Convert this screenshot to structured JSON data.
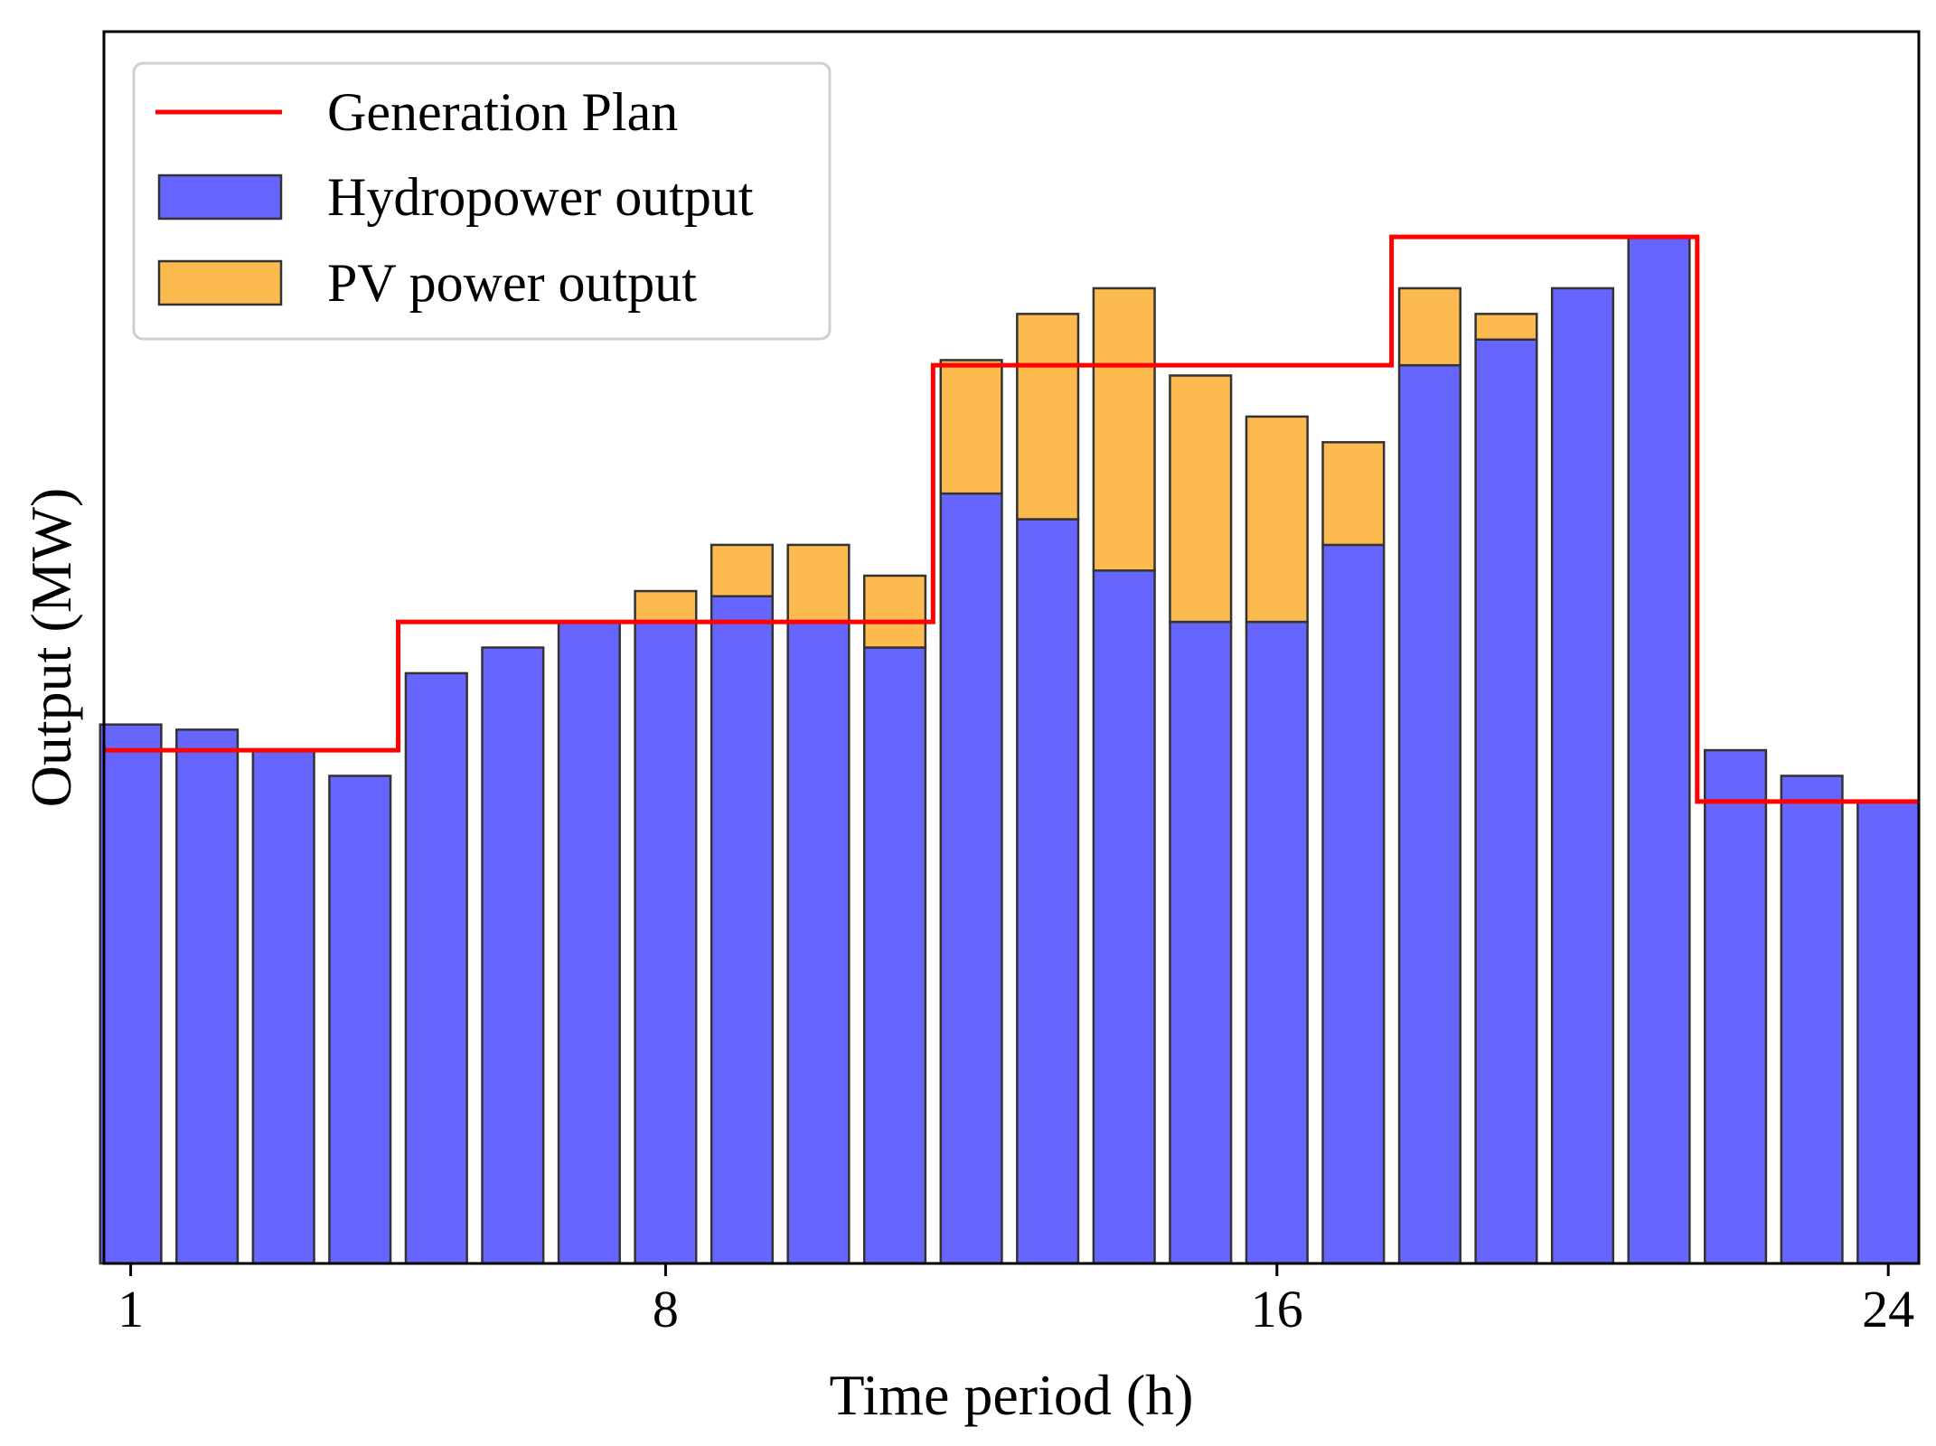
{
  "chart_data": {
    "type": "bar",
    "title": "",
    "xlabel": "Time period (h)",
    "ylabel": "Output (MW)",
    "x": [
      1,
      2,
      3,
      4,
      5,
      6,
      7,
      8,
      9,
      10,
      11,
      12,
      13,
      14,
      15,
      16,
      17,
      18,
      19,
      20,
      21,
      22,
      23,
      24
    ],
    "xticks": [
      "1",
      "8",
      "16",
      "24"
    ],
    "xlim": [
      0.65,
      24.4
    ],
    "ylim": [
      0,
      48
    ],
    "yticks_visible": false,
    "grid": false,
    "legend_position": "top-left",
    "series": [
      {
        "name": "Hydropower output",
        "kind": "bar",
        "color": "#6666ff",
        "values": [
          21,
          20.8,
          20,
          19,
          23,
          24,
          25,
          25,
          26,
          25,
          24,
          30,
          29,
          27,
          25,
          25,
          28,
          35,
          36,
          38,
          40,
          20,
          19,
          18
        ]
      },
      {
        "name": "PV power output",
        "kind": "bar-stacked",
        "color": "#fdbb4f",
        "values": [
          0,
          0,
          0,
          0,
          0,
          0,
          0,
          1.2,
          2,
          3,
          2.8,
          5.2,
          8,
          11,
          9.6,
          8,
          4,
          3,
          1,
          0,
          0,
          0,
          0,
          0
        ]
      },
      {
        "name": "Generation Plan",
        "kind": "step-line",
        "color": "#ff0000",
        "values": [
          20,
          20,
          20,
          20,
          25,
          25,
          25,
          25,
          25,
          25,
          25,
          35,
          35,
          35,
          35,
          35,
          35,
          40,
          40,
          40,
          40,
          18,
          18,
          18
        ]
      }
    ],
    "legend": [
      {
        "label": "Generation Plan",
        "symbol": "line",
        "color": "#ff0000"
      },
      {
        "label": "Hydropower output",
        "symbol": "box",
        "color": "#6666ff"
      },
      {
        "label": "PV power output",
        "symbol": "box",
        "color": "#fdbb4f"
      }
    ]
  }
}
